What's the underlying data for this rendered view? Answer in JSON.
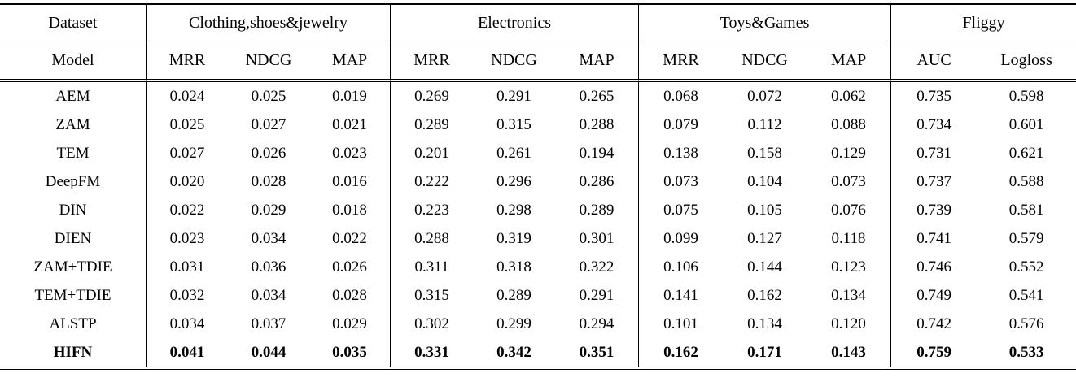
{
  "table": {
    "groups": [
      {
        "label": "Dataset",
        "span": 1
      },
      {
        "label": "Clothing,shoes&jewelry",
        "span": 3
      },
      {
        "label": "Electronics",
        "span": 3
      },
      {
        "label": "Toys&Games",
        "span": 3
      },
      {
        "label": "Fliggy",
        "span": 2
      }
    ],
    "subheaders": [
      "Model",
      "MRR",
      "NDCG",
      "MAP",
      "MRR",
      "NDCG",
      "MAP",
      "MRR",
      "NDCG",
      "MAP",
      "AUC",
      "Logloss"
    ],
    "rows": [
      {
        "model": "AEM",
        "bold": false,
        "values": [
          "0.024",
          "0.025",
          "0.019",
          "0.269",
          "0.291",
          "0.265",
          "0.068",
          "0.072",
          "0.062",
          "0.735",
          "0.598"
        ]
      },
      {
        "model": "ZAM",
        "bold": false,
        "values": [
          "0.025",
          "0.027",
          "0.021",
          "0.289",
          "0.315",
          "0.288",
          "0.079",
          "0.112",
          "0.088",
          "0.734",
          "0.601"
        ]
      },
      {
        "model": "TEM",
        "bold": false,
        "values": [
          "0.027",
          "0.026",
          "0.023",
          "0.201",
          "0.261",
          "0.194",
          "0.138",
          "0.158",
          "0.129",
          "0.731",
          "0.621"
        ]
      },
      {
        "model": "DeepFM",
        "bold": false,
        "values": [
          "0.020",
          "0.028",
          "0.016",
          "0.222",
          "0.296",
          "0.286",
          "0.073",
          "0.104",
          "0.073",
          "0.737",
          "0.588"
        ]
      },
      {
        "model": "DIN",
        "bold": false,
        "values": [
          "0.022",
          "0.029",
          "0.018",
          "0.223",
          "0.298",
          "0.289",
          "0.075",
          "0.105",
          "0.076",
          "0.739",
          "0.581"
        ]
      },
      {
        "model": "DIEN",
        "bold": false,
        "values": [
          "0.023",
          "0.034",
          "0.022",
          "0.288",
          "0.319",
          "0.301",
          "0.099",
          "0.127",
          "0.118",
          "0.741",
          "0.579"
        ]
      },
      {
        "model": "ZAM+TDIE",
        "bold": false,
        "values": [
          "0.031",
          "0.036",
          "0.026",
          "0.311",
          "0.318",
          "0.322",
          "0.106",
          "0.144",
          "0.123",
          "0.746",
          "0.552"
        ]
      },
      {
        "model": "TEM+TDIE",
        "bold": false,
        "values": [
          "0.032",
          "0.034",
          "0.028",
          "0.315",
          "0.289",
          "0.291",
          "0.141",
          "0.162",
          "0.134",
          "0.749",
          "0.541"
        ]
      },
      {
        "model": "ALSTP",
        "bold": false,
        "values": [
          "0.034",
          "0.037",
          "0.029",
          "0.302",
          "0.299",
          "0.294",
          "0.101",
          "0.134",
          "0.120",
          "0.742",
          "0.576"
        ]
      },
      {
        "model": "HIFN",
        "bold": true,
        "values": [
          "0.041",
          "0.044",
          "0.035",
          "0.331",
          "0.342",
          "0.351",
          "0.162",
          "0.171",
          "0.143",
          "0.759",
          "0.533"
        ]
      }
    ]
  }
}
